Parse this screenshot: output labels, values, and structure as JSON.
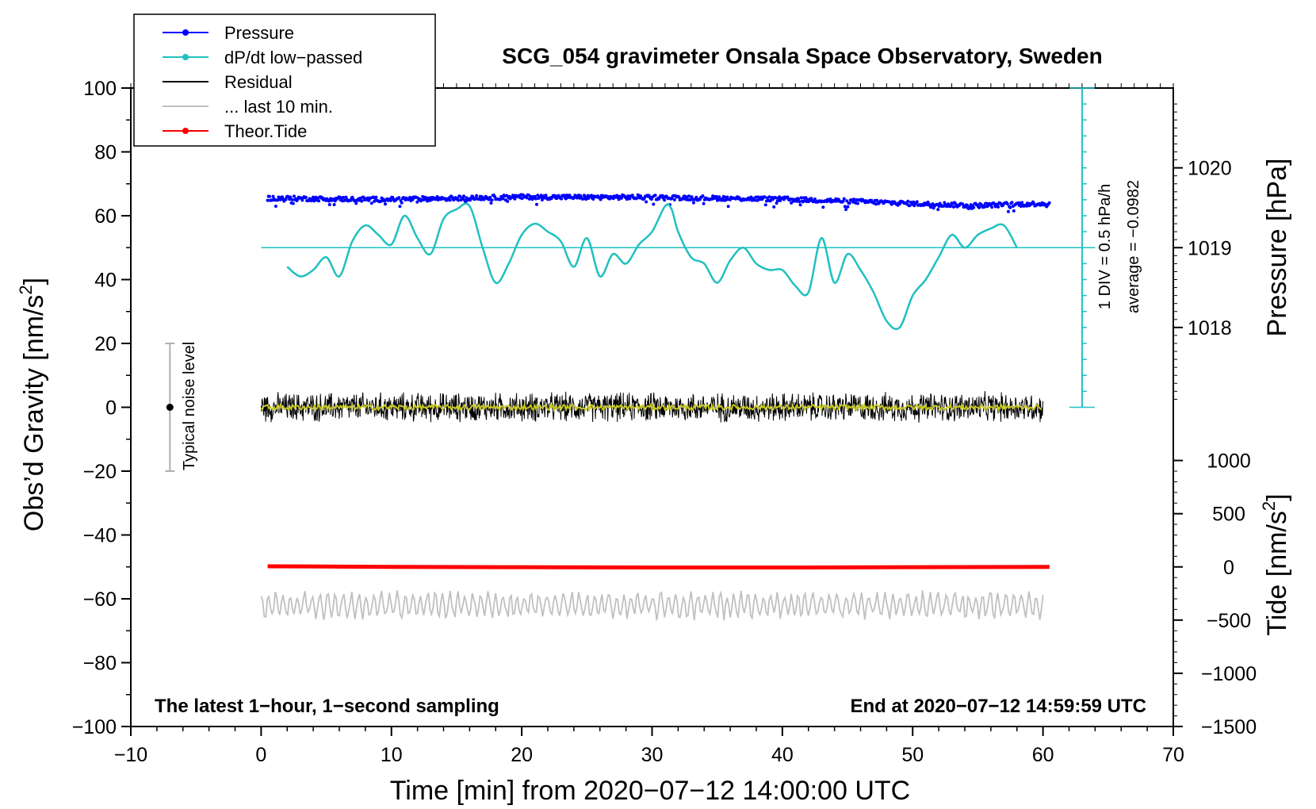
{
  "chart_data": {
    "type": "line",
    "title": "SCG_054 gravimeter Onsala Space Observatory, Sweden",
    "xlabel": "Time [min] from 2020−07−12 14:00:00 UTC",
    "ylabel_left_main": "Obs’d Gravity [nm/s",
    "ylabel_left_sup": "2",
    "ylabel_left_end": "]",
    "ylabel_right_pressure": "Pressure [hPa]",
    "ylabel_right_tide_main": "Tide [nm/s",
    "ylabel_right_tide_sup": "2",
    "ylabel_right_tide_end": "]",
    "xlim": [
      -10,
      70
    ],
    "ylim": [
      -100,
      100
    ],
    "x_ticks": [
      -10,
      0,
      10,
      20,
      30,
      40,
      50,
      60,
      70
    ],
    "x_tick_labels": [
      "−10",
      "0",
      "10",
      "20",
      "30",
      "40",
      "50",
      "60",
      "70"
    ],
    "y_ticks": [
      -100,
      -80,
      -60,
      -40,
      -20,
      0,
      20,
      40,
      60,
      80,
      100
    ],
    "y_tick_labels": [
      "−100",
      "−80",
      "−60",
      "−40",
      "−20",
      "0",
      "20",
      "40",
      "60",
      "80",
      "100"
    ],
    "pressure_axis": {
      "ticks": [
        1018,
        1019,
        1020
      ],
      "tick_labels": [
        "1018",
        "1019",
        "1020"
      ],
      "gravity_at_1019": 50,
      "gravity_per_hPa": 25
    },
    "tide_axis": {
      "ticks": [
        -1500,
        -1000,
        -500,
        0,
        500,
        1000
      ],
      "tick_labels": [
        "−1500",
        "−1000",
        "−500",
        "0",
        "500",
        "1000"
      ],
      "gravity_at_0": -50,
      "gravity_per_1000": 33.33
    },
    "dpdt_scale": {
      "label": "1 DIV = 0.5 hPa/h",
      "average_label": "average = −0.0982",
      "x_position": 63,
      "y_range": [
        0,
        100
      ],
      "divisions": 20
    },
    "noise_indicator": {
      "label": "Typical noise level",
      "x": -7,
      "center": 0,
      "range": [
        -20,
        20
      ]
    },
    "footer_left": "The latest 1−hour, 1−second sampling",
    "footer_right": "End at 2020−07−12 14:59:59 UTC",
    "legend": [
      {
        "label": "Pressure",
        "color": "#0000ff",
        "marker": true
      },
      {
        "label": "dP/dt low−passed",
        "color": "#20c0c0",
        "marker": true
      },
      {
        "label": "Residual",
        "color": "#000000",
        "marker": false
      },
      {
        "label": "... last 10 min.",
        "color": "#c0c0c0",
        "marker": false
      },
      {
        "label": "Theor.Tide",
        "color": "#ff0000",
        "marker": true
      }
    ],
    "series": [
      {
        "name": "Pressure",
        "color": "#0000ff",
        "x": [
          0.5,
          5,
          10,
          15,
          20,
          25,
          30,
          35,
          40,
          45,
          50,
          55,
          60.5
        ],
        "y": [
          65.5,
          65.3,
          65.1,
          65.5,
          65.9,
          65.8,
          65.8,
          65.5,
          65.2,
          64.6,
          63.8,
          63.2,
          63.9
        ],
        "noise_amplitude": 1.2
      },
      {
        "name": "dP/dt low−passed",
        "color": "#20c0c0",
        "x": [
          2,
          3,
          4,
          5,
          6,
          7,
          8,
          9,
          10,
          11,
          12,
          13,
          14,
          15,
          16,
          17,
          18,
          19,
          20,
          21,
          22,
          23,
          24,
          25,
          26,
          27,
          28,
          29,
          30,
          31,
          31.5,
          32,
          33,
          34,
          35,
          36,
          37,
          38,
          39,
          40,
          41,
          42,
          43,
          44,
          45,
          46,
          47,
          48,
          49,
          50,
          51,
          52,
          53,
          54,
          55,
          56,
          57,
          58
        ],
        "y": [
          44,
          41,
          43,
          47,
          41,
          52,
          57,
          54,
          51,
          60,
          53,
          48,
          59,
          62,
          63,
          50,
          39,
          45,
          54,
          57.5,
          55,
          52,
          44,
          53,
          41,
          48,
          45,
          51,
          55,
          63,
          62,
          55,
          47,
          45,
          39,
          46,
          50,
          45,
          43,
          43,
          38,
          36,
          53,
          39,
          48,
          43,
          36,
          27,
          25,
          35,
          40,
          47,
          54,
          50,
          54,
          56,
          57,
          50
        ]
      },
      {
        "name": "Residual",
        "color": "#000000",
        "x_range": [
          0,
          60
        ],
        "center": 0,
        "amplitude": 5
      },
      {
        "name": "Residual smoothed",
        "color": "#c8c820",
        "x_range": [
          0,
          60
        ],
        "center": 0,
        "amplitude": 0.8
      },
      {
        "name": "... last 10 min.",
        "color": "#c0c0c0",
        "x_range": [
          0,
          60
        ],
        "center": -62,
        "amplitude": 4
      },
      {
        "name": "Theor.Tide",
        "color": "#ff0000",
        "x": [
          0.5,
          10,
          20,
          30,
          40,
          50,
          60.5
        ],
        "y": [
          -49.8,
          -50.0,
          -50.1,
          -50.2,
          -50.2,
          -50.1,
          -50.0
        ]
      }
    ]
  }
}
